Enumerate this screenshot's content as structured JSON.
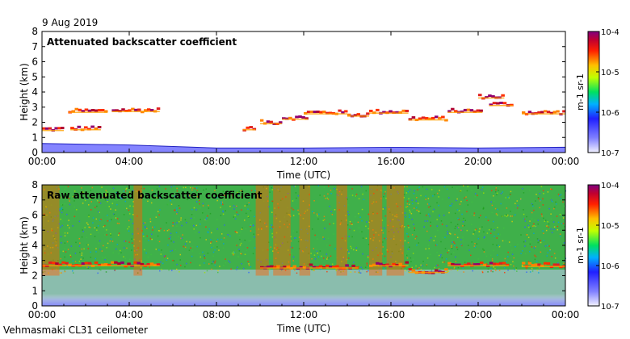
{
  "date": "9 Aug 2019",
  "instrument": "Vehmasmaki CL31 ceilometer",
  "chart_data": [
    {
      "type": "heatmap",
      "title": "Attenuated backscatter coefficient",
      "xlabel": "Time (UTC)",
      "ylabel": "Height (km)",
      "xlim": [
        0,
        24
      ],
      "ylim": [
        0,
        8
      ],
      "xticks": [
        "00:00",
        "04:00",
        "08:00",
        "12:00",
        "16:00",
        "20:00",
        "00:00"
      ],
      "yticks": [
        "0",
        "1",
        "2",
        "3",
        "4",
        "5",
        "6",
        "7",
        "8"
      ],
      "colorbar": {
        "label": "m-1 sr-1",
        "min_exp": -7,
        "max_exp": -4,
        "ticks": [
          "10-7",
          "10-6",
          "10-5",
          "10-4"
        ]
      },
      "cloud_layers": [
        {
          "t0": 0.0,
          "t1": 1.0,
          "h": 1.55
        },
        {
          "t0": 1.3,
          "t1": 2.7,
          "h": 1.6
        },
        {
          "t0": 1.2,
          "t1": 3.0,
          "h": 2.75
        },
        {
          "t0": 3.2,
          "t1": 5.4,
          "h": 2.8
        },
        {
          "t0": 9.2,
          "t1": 9.8,
          "h": 1.6
        },
        {
          "t0": 10.0,
          "t1": 11.0,
          "h": 2.0
        },
        {
          "t0": 11.0,
          "t1": 12.2,
          "h": 2.3
        },
        {
          "t0": 12.0,
          "t1": 14.0,
          "h": 2.65
        },
        {
          "t0": 14.0,
          "t1": 15.0,
          "h": 2.5
        },
        {
          "t0": 15.0,
          "t1": 16.8,
          "h": 2.7
        },
        {
          "t0": 16.8,
          "t1": 18.6,
          "h": 2.25
        },
        {
          "t0": 18.6,
          "t1": 20.2,
          "h": 2.75
        },
        {
          "t0": 20.0,
          "t1": 21.2,
          "h": 3.7
        },
        {
          "t0": 20.5,
          "t1": 21.6,
          "h": 3.2
        },
        {
          "t0": 22.0,
          "t1": 24.0,
          "h": 2.65
        }
      ],
      "boundary_layer_top_km": [
        0.6,
        0.5,
        0.3,
        0.3,
        0.35,
        0.3,
        0.35
      ]
    },
    {
      "type": "heatmap",
      "title": "Raw attenuated backscatter coefficient",
      "xlabel": "Time (UTC)",
      "ylabel": "Height (km)",
      "xlim": [
        0,
        24
      ],
      "ylim": [
        0,
        8
      ],
      "xticks": [
        "00:00",
        "04:00",
        "08:00",
        "12:00",
        "16:00",
        "20:00",
        "00:00"
      ],
      "yticks": [
        "0",
        "1",
        "2",
        "3",
        "4",
        "5",
        "6",
        "7",
        "8"
      ],
      "colorbar": {
        "label": "m-1 sr-1",
        "min_exp": -7,
        "max_exp": -4,
        "ticks": [
          "10-7",
          "10-6",
          "10-5",
          "10-4"
        ]
      },
      "noisy_bands_utc": [
        [
          0.0,
          0.8
        ],
        [
          4.2,
          4.6
        ],
        [
          9.8,
          10.4
        ],
        [
          10.6,
          11.4
        ],
        [
          11.8,
          12.3
        ],
        [
          13.5,
          14.0
        ],
        [
          15.0,
          15.6
        ],
        [
          15.8,
          16.6
        ]
      ],
      "cloud_layers": [
        {
          "t0": 0.0,
          "t1": 5.4,
          "h": 2.75
        },
        {
          "t0": 10.0,
          "t1": 14.5,
          "h": 2.6
        },
        {
          "t0": 15.0,
          "t1": 16.8,
          "h": 2.75
        },
        {
          "t0": 16.8,
          "t1": 18.6,
          "h": 2.3
        },
        {
          "t0": 18.6,
          "t1": 21.4,
          "h": 2.75
        },
        {
          "t0": 22.0,
          "t1": 24.0,
          "h": 2.7
        }
      ]
    }
  ],
  "axis_labels": {
    "panel1": {
      "title": "Attenuated backscatter coefficient",
      "ylabel": "Height (km)",
      "xlabel": "Time (UTC)",
      "colorbar_unit": "m-1 sr-1"
    },
    "panel2": {
      "title": "Raw attenuated backscatter coefficient",
      "ylabel": "Height (km)",
      "xlabel": "Time (UTC)",
      "colorbar_unit": "m-1 sr-1"
    }
  }
}
